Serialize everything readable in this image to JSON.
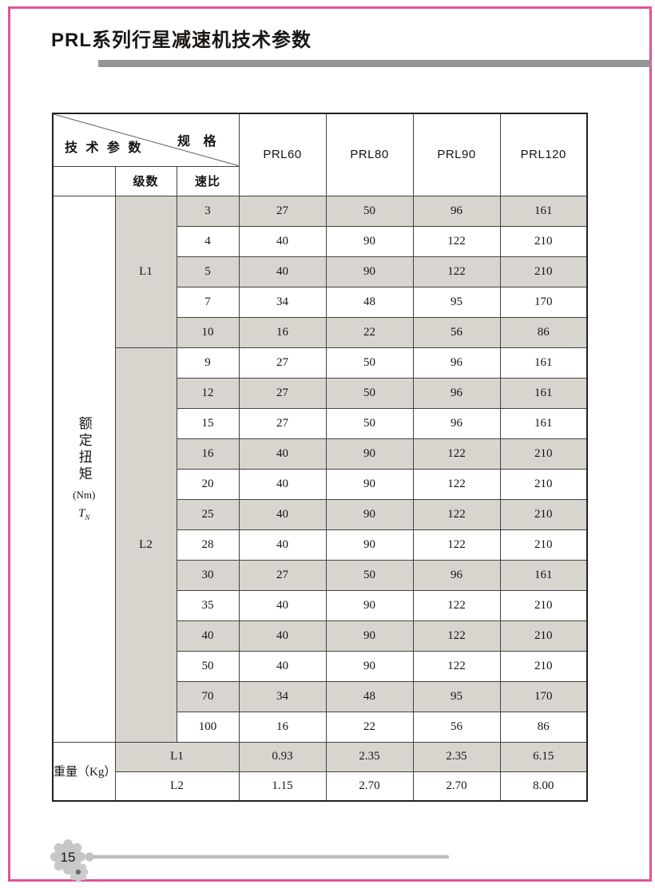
{
  "page": {
    "title": "PRL系列行星减速机技术参数",
    "page_number": "15"
  },
  "colors": {
    "frame_pink": "#e1549b",
    "title_rule_gray": "#959595",
    "row_shade": "#d8d5ce",
    "table_border": "#424242",
    "footer_gear_gray": "#c7c7c7",
    "footer_line_gray": "#bdbdbd"
  },
  "icons": {
    "footer_large": "gear-icon",
    "footer_small": "small-gear-icon"
  },
  "table": {
    "corner": {
      "top_right_label": "规 格",
      "bottom_left_label": "技 术 参 数"
    },
    "columns": [
      "PRL60",
      "PRL80",
      "PRL90",
      "PRL120"
    ],
    "subheaders": {
      "stage": "级数",
      "ratio": "速比"
    },
    "row_label": {
      "torque": "额定扭矩",
      "torque_unit": "(Nm)",
      "torque_symbol": "T",
      "torque_symbol_sub": "N"
    },
    "groups": [
      {
        "stage": "L1",
        "rows": [
          {
            "ratio": "3",
            "values": [
              "27",
              "50",
              "96",
              "161"
            ]
          },
          {
            "ratio": "4",
            "values": [
              "40",
              "90",
              "122",
              "210"
            ]
          },
          {
            "ratio": "5",
            "values": [
              "40",
              "90",
              "122",
              "210"
            ]
          },
          {
            "ratio": "7",
            "values": [
              "34",
              "48",
              "95",
              "170"
            ]
          },
          {
            "ratio": "10",
            "values": [
              "16",
              "22",
              "56",
              "86"
            ]
          }
        ]
      },
      {
        "stage": "L2",
        "rows": [
          {
            "ratio": "9",
            "values": [
              "27",
              "50",
              "96",
              "161"
            ]
          },
          {
            "ratio": "12",
            "values": [
              "27",
              "50",
              "96",
              "161"
            ]
          },
          {
            "ratio": "15",
            "values": [
              "27",
              "50",
              "96",
              "161"
            ]
          },
          {
            "ratio": "16",
            "values": [
              "40",
              "90",
              "122",
              "210"
            ]
          },
          {
            "ratio": "20",
            "values": [
              "40",
              "90",
              "122",
              "210"
            ]
          },
          {
            "ratio": "25",
            "values": [
              "40",
              "90",
              "122",
              "210"
            ]
          },
          {
            "ratio": "28",
            "values": [
              "40",
              "90",
              "122",
              "210"
            ]
          },
          {
            "ratio": "30",
            "values": [
              "27",
              "50",
              "96",
              "161"
            ]
          },
          {
            "ratio": "35",
            "values": [
              "40",
              "90",
              "122",
              "210"
            ]
          },
          {
            "ratio": "40",
            "values": [
              "40",
              "90",
              "122",
              "210"
            ]
          },
          {
            "ratio": "50",
            "values": [
              "40",
              "90",
              "122",
              "210"
            ]
          },
          {
            "ratio": "70",
            "values": [
              "34",
              "48",
              "95",
              "170"
            ]
          },
          {
            "ratio": "100",
            "values": [
              "16",
              "22",
              "56",
              "86"
            ]
          }
        ]
      }
    ],
    "weight": {
      "label": "重量（Kg）",
      "rows": [
        {
          "stage": "L1",
          "values": [
            "0.93",
            "2.35",
            "2.35",
            "6.15"
          ]
        },
        {
          "stage": "L2",
          "values": [
            "1.15",
            "2.70",
            "2.70",
            "8.00"
          ]
        }
      ]
    }
  }
}
